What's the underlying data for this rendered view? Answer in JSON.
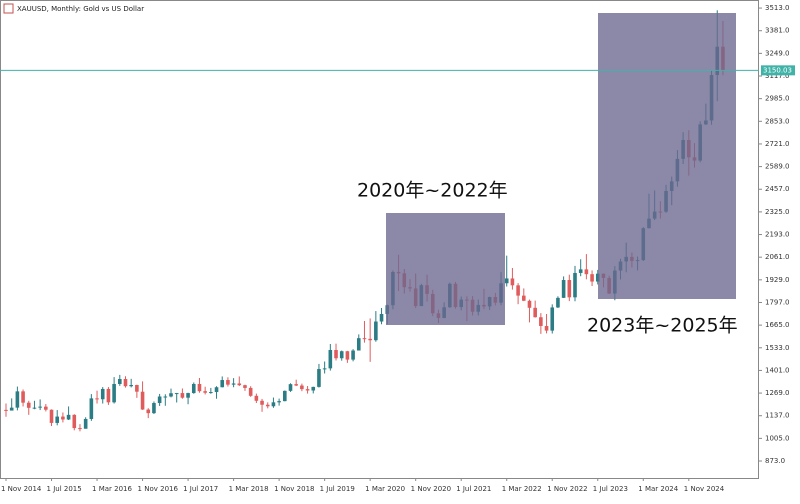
{
  "chart_data": {
    "type": "candlestick",
    "title": "XAUUSD, Monthly: Gold vs US Dollar",
    "categories": [
      "1 Nov 2014",
      null,
      null,
      null,
      null,
      null,
      null,
      null,
      "1 Jul 2015",
      null,
      null,
      null,
      null,
      null,
      null,
      null,
      "1 Mar 2016",
      null,
      null,
      null,
      null,
      null,
      null,
      null,
      "1 Nov 2016",
      null,
      null,
      null,
      null,
      null,
      null,
      null,
      "1 Jul 2017",
      null,
      null,
      null,
      null,
      null,
      null,
      null,
      "1 Mar 2018",
      null,
      null,
      null,
      null,
      null,
      null,
      null,
      "1 Nov 2018",
      null,
      null,
      null,
      null,
      null,
      null,
      null,
      "1 Jul 2019",
      null,
      null,
      null,
      null,
      null,
      null,
      null,
      "1 Mar 2020",
      null,
      null,
      null,
      null,
      null,
      null,
      null,
      "1 Nov 2020",
      null,
      null,
      null,
      null,
      null,
      null,
      null,
      "1 Jul 2021",
      null,
      null,
      null,
      null,
      null,
      null,
      null,
      "1 Mar 2022",
      null,
      null,
      null,
      null,
      null,
      null,
      null,
      "1 Nov 2022",
      null,
      null,
      null,
      null,
      null,
      null,
      null,
      "1 Jul 2023",
      null,
      null,
      null,
      null,
      null,
      null,
      null,
      "1 Mar 2024",
      null,
      null,
      null,
      null,
      null,
      null,
      null,
      "1 Nov 2024",
      null,
      null,
      null,
      null,
      null,
      null
    ],
    "open": [
      1171,
      1167,
      1184,
      1279,
      1213,
      1183,
      1184,
      1190,
      1172,
      1095,
      1132,
      1115,
      1142,
      1065,
      1061,
      1118,
      1238,
      1233,
      1293,
      1215,
      1322,
      1351,
      1309,
      1316,
      1277,
      1173,
      1152,
      1211,
      1249,
      1249,
      1268,
      1269,
      1242,
      1269,
      1322,
      1280,
      1271,
      1275,
      1303,
      1345,
      1318,
      1325,
      1315,
      1299,
      1253,
      1224,
      1201,
      1192,
      1215,
      1222,
      1282,
      1321,
      1313,
      1292,
      1284,
      1305,
      1409,
      1413,
      1520,
      1472,
      1513,
      1464,
      1517,
      1589,
      1585,
      1577,
      1686,
      1730,
      1781,
      1975,
      1967,
      1886,
      1879,
      1776,
      1898,
      1847,
      1734,
      1707,
      1769,
      1906,
      1770,
      1814,
      1813,
      1743,
      1783,
      1774,
      1829,
      1796,
      1909,
      1937,
      1897,
      1837,
      1807,
      1766,
      1711,
      1660,
      1633,
      1768,
      1824,
      1928,
      1827,
      1969,
      1990,
      1962,
      1919,
      1965,
      1940,
      1849,
      1983,
      2036,
      2063,
      2039,
      2044,
      2230,
      2286,
      2327,
      2326,
      2447,
      2503,
      2634,
      2744,
      2643,
      2624,
      2835,
      2858,
      3123,
      3288
    ],
    "high": [
      1208,
      1238,
      1307,
      1290,
      1224,
      1224,
      1232,
      1205,
      1174,
      1170,
      1156,
      1191,
      1146,
      1088,
      1128,
      1263,
      1283,
      1304,
      1304,
      1362,
      1375,
      1367,
      1352,
      1318,
      1337,
      1181,
      1220,
      1264,
      1262,
      1295,
      1270,
      1296,
      1271,
      1331,
      1357,
      1306,
      1299,
      1309,
      1366,
      1361,
      1356,
      1366,
      1318,
      1309,
      1266,
      1235,
      1215,
      1243,
      1237,
      1284,
      1326,
      1347,
      1324,
      1310,
      1306,
      1439,
      1453,
      1555,
      1557,
      1517,
      1515,
      1525,
      1611,
      1689,
      1704,
      1747,
      1765,
      1785,
      1984,
      2075,
      1992,
      1933,
      1966,
      1906,
      1959,
      1871,
      1755,
      1798,
      1913,
      1917,
      1832,
      1833,
      1834,
      1814,
      1877,
      1831,
      1853,
      1974,
      2070,
      1998,
      1910,
      1879,
      1814,
      1808,
      1735,
      1730,
      1786,
      1833,
      1949,
      1959,
      2010,
      2049,
      2079,
      1984,
      1987,
      1966,
      1953,
      2009,
      2052,
      2146,
      2088,
      2065,
      2236,
      2431,
      2450,
      2387,
      2483,
      2531,
      2685,
      2790,
      2801,
      2726,
      2853,
      2956,
      3148,
      3500,
      3438
    ],
    "low": [
      1131,
      1170,
      1168,
      1191,
      1142,
      1175,
      1170,
      1162,
      1077,
      1081,
      1098,
      1112,
      1052,
      1046,
      1062,
      1107,
      1208,
      1208,
      1200,
      1208,
      1311,
      1301,
      1302,
      1241,
      1171,
      1123,
      1147,
      1194,
      1195,
      1244,
      1214,
      1236,
      1204,
      1265,
      1271,
      1261,
      1265,
      1236,
      1302,
      1307,
      1303,
      1310,
      1282,
      1247,
      1211,
      1160,
      1180,
      1183,
      1196,
      1221,
      1276,
      1310,
      1280,
      1266,
      1267,
      1301,
      1383,
      1400,
      1459,
      1458,
      1445,
      1454,
      1517,
      1563,
      1451,
      1568,
      1670,
      1670,
      1757,
      1863,
      1849,
      1860,
      1764,
      1776,
      1802,
      1717,
      1677,
      1705,
      1766,
      1761,
      1751,
      1688,
      1721,
      1721,
      1758,
      1753,
      1780,
      1781,
      1890,
      1872,
      1787,
      1805,
      1681,
      1709,
      1614,
      1617,
      1616,
      1765,
      1823,
      1805,
      1804,
      1950,
      1932,
      1893,
      1902,
      1885,
      1846,
      1810,
      1931,
      1973,
      2001,
      1984,
      2039,
      2228,
      2277,
      2286,
      2319,
      2364,
      2472,
      2604,
      2536,
      2583,
      2614,
      2832,
      2833,
      2970,
      3121
    ],
    "close": [
      1167,
      1184,
      1279,
      1213,
      1183,
      1184,
      1190,
      1172,
      1095,
      1132,
      1115,
      1142,
      1065,
      1061,
      1118,
      1238,
      1233,
      1293,
      1215,
      1322,
      1351,
      1309,
      1316,
      1277,
      1173,
      1152,
      1211,
      1249,
      1249,
      1268,
      1269,
      1242,
      1269,
      1322,
      1280,
      1271,
      1275,
      1303,
      1345,
      1318,
      1325,
      1315,
      1299,
      1253,
      1224,
      1201,
      1192,
      1215,
      1222,
      1282,
      1321,
      1313,
      1292,
      1284,
      1305,
      1409,
      1413,
      1520,
      1472,
      1513,
      1464,
      1517,
      1589,
      1585,
      1577,
      1686,
      1730,
      1781,
      1975,
      1967,
      1886,
      1879,
      1776,
      1898,
      1847,
      1734,
      1707,
      1769,
      1906,
      1770,
      1814,
      1813,
      1743,
      1783,
      1774,
      1829,
      1796,
      1909,
      1937,
      1897,
      1837,
      1807,
      1766,
      1711,
      1660,
      1633,
      1768,
      1824,
      1928,
      1827,
      1969,
      1990,
      1962,
      1919,
      1965,
      1940,
      1849,
      1983,
      2036,
      2063,
      2039,
      2044,
      2230,
      2286,
      2327,
      2326,
      2447,
      2503,
      2634,
      2744,
      2643,
      2624,
      2835,
      2858,
      3123,
      3288,
      3150
    ],
    "up_color": "#2b7c84",
    "down_color": "#e05c5c",
    "current_price": 3150.03,
    "current_price_color": "#3fb3a8",
    "ylim": [
      774,
      3560
    ],
    "yticks": [
      {
        "value": 873,
        "label": "873.0"
      },
      {
        "value": 1005,
        "label": "1005.0"
      },
      {
        "value": 1137,
        "label": "1137.0"
      },
      {
        "value": 1269,
        "label": "1269.0"
      },
      {
        "value": 1401,
        "label": "1401.0"
      },
      {
        "value": 1533,
        "label": "1533.0"
      },
      {
        "value": 1665,
        "label": "1665.0"
      },
      {
        "value": 1797,
        "label": "1797.0"
      },
      {
        "value": 1929,
        "label": "1929.0"
      },
      {
        "value": 2061,
        "label": "2061.0"
      },
      {
        "value": 2193,
        "label": "2193.0"
      },
      {
        "value": 2325,
        "label": "2325.0"
      },
      {
        "value": 2457,
        "label": "2457.0"
      },
      {
        "value": 2589,
        "label": "2589.0"
      },
      {
        "value": 2721,
        "label": "2721.0"
      },
      {
        "value": 2853,
        "label": "2853.0"
      },
      {
        "value": 2985,
        "label": "2985.0"
      },
      {
        "value": 3117,
        "label": "3117.0"
      },
      {
        "value": 3249,
        "label": "3249.0"
      },
      {
        "value": 3381,
        "label": "3381.0"
      },
      {
        "value": 3513,
        "label": "3513.0"
      }
    ],
    "annotations": [
      "2020年~2022年",
      "2023年~2025年"
    ]
  }
}
